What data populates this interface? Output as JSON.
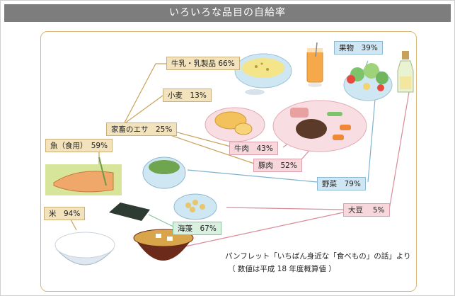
{
  "title": "いろいろな品目の自給率",
  "labels": {
    "dairy": "牛乳・乳製品 66%",
    "wheat": "小麦　13%",
    "feed": "家畜のエサ　25%",
    "fish": "魚（食用）　59%",
    "rice": "米　94%",
    "fruit": "果物　39%",
    "beef": "牛肉　43%",
    "pork": "豚肉　52%",
    "vegetables": "野菜　79%",
    "soybeans": "大豆　 5%",
    "seaweed": "海藻　67%"
  },
  "source": {
    "line1": "パンフレット「いちばん身近な「食べもの」の話」より",
    "line2": "（ 数値は平成 18 年度概算値 ）"
  },
  "colors": {
    "titlebar": "#7d7d7d",
    "line_tan": "#c9a25a",
    "line_pink": "#d98c9a",
    "line_blue": "#7fb2cf"
  }
}
